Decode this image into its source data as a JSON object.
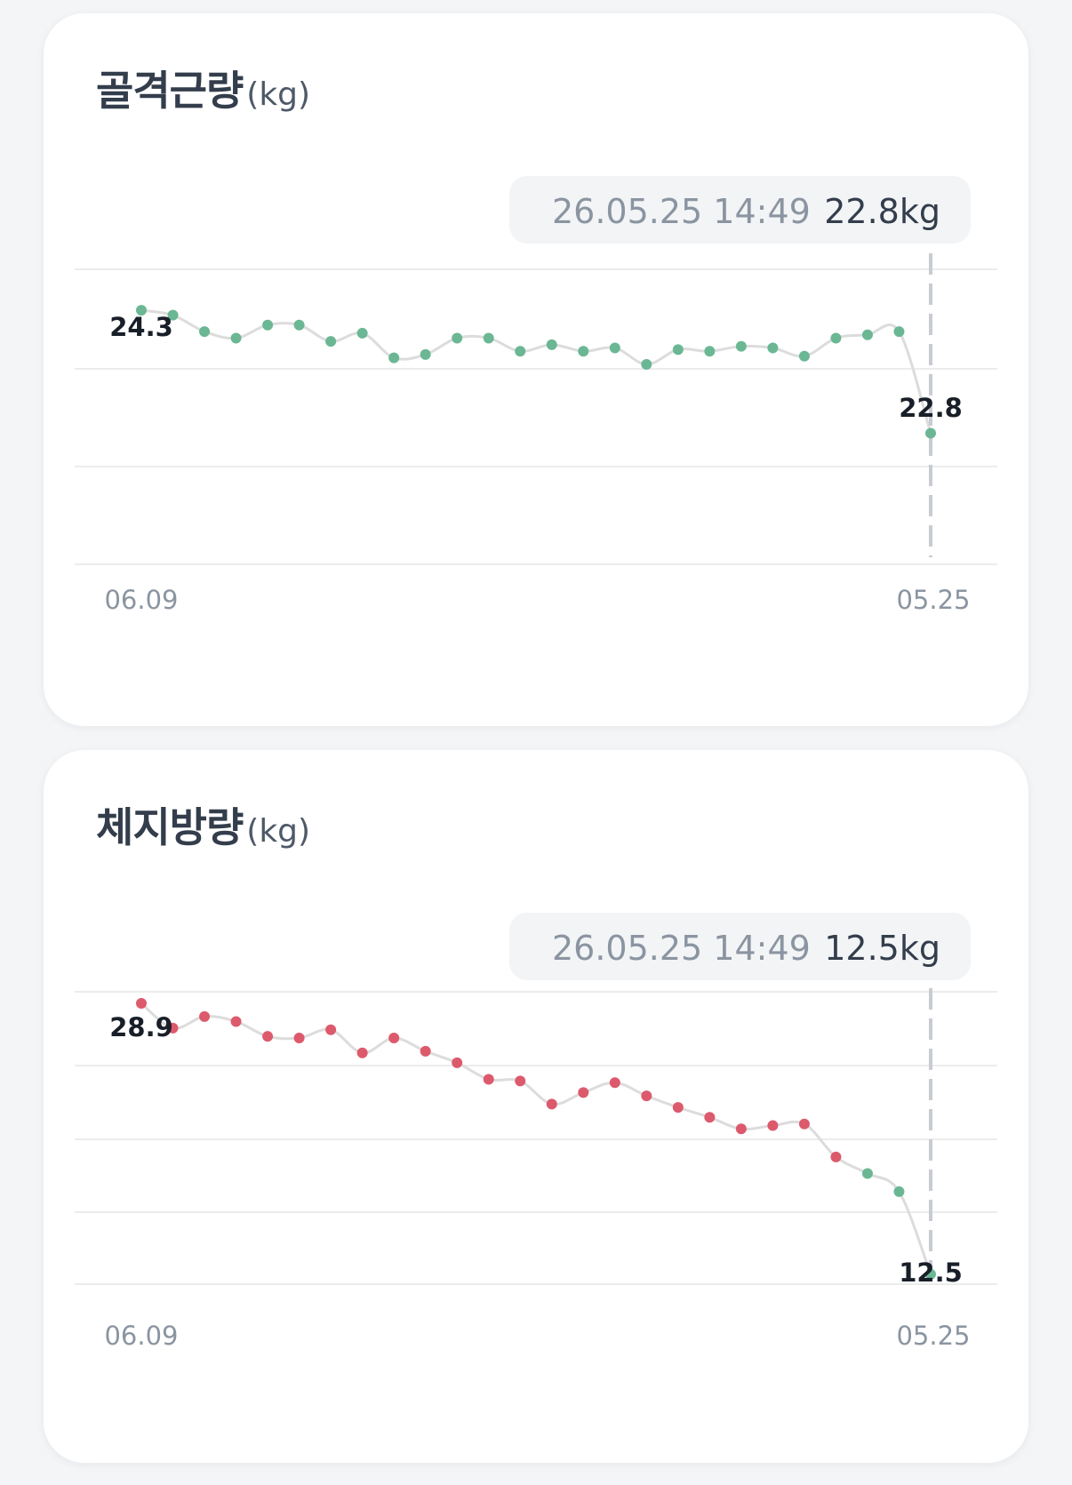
{
  "cards": [
    {
      "title": "골격근량",
      "unit": "(kg)",
      "tooltip": {
        "datetime": "26.05.25 14:49",
        "value_text": "22.8kg"
      },
      "start_label": "24.3",
      "end_label": "22.8"
    },
    {
      "title": "체지방량",
      "unit": "(kg)",
      "tooltip": {
        "datetime": "26.05.25 14:49",
        "value_text": "12.5kg"
      },
      "start_label": "28.9",
      "end_label": "12.5"
    }
  ],
  "colors": {
    "normal_point": "#6bb794",
    "high_point": "#dc5a6c",
    "line": "#dcdcdc",
    "grid": "#ececec",
    "cursor": "#c8ccd2",
    "tooltip_bg": "#f2f4f6"
  },
  "chart_data": [
    {
      "type": "line",
      "title": "골격근량",
      "ylabel": "(kg)",
      "x_tick_labels": [
        "06.09",
        "05.25"
      ],
      "ylim": [
        21.2,
        24.8
      ],
      "grid": true,
      "series": [
        {
          "values": [
            24.3,
            24.24,
            24.04,
            23.96,
            24.12,
            24.12,
            23.92,
            24.02,
            23.72,
            23.76,
            23.96,
            23.96,
            23.8,
            23.88,
            23.8,
            23.84,
            23.64,
            23.82,
            23.8,
            23.86,
            23.84,
            23.74,
            23.96,
            24.0,
            24.04,
            22.8
          ],
          "point_status": [
            "normal",
            "normal",
            "normal",
            "normal",
            "normal",
            "normal",
            "normal",
            "normal",
            "normal",
            "normal",
            "normal",
            "normal",
            "normal",
            "normal",
            "normal",
            "normal",
            "normal",
            "normal",
            "normal",
            "normal",
            "normal",
            "normal",
            "normal",
            "normal",
            "normal",
            "normal"
          ]
        }
      ],
      "selected_index": 25
    },
    {
      "type": "line",
      "title": "체지방량",
      "ylabel": "(kg)",
      "x_tick_labels": [
        "06.09",
        "05.25"
      ],
      "ylim": [
        11.9,
        29.6
      ],
      "grid": true,
      "series": [
        {
          "values": [
            28.9,
            27.4,
            28.1,
            27.8,
            26.9,
            26.8,
            27.3,
            25.9,
            26.8,
            26.0,
            25.3,
            24.3,
            24.2,
            22.8,
            23.5,
            24.1,
            23.3,
            22.6,
            22.0,
            21.3,
            21.5,
            21.6,
            19.6,
            18.6,
            17.5,
            12.5
          ],
          "point_status": [
            "high",
            "high",
            "high",
            "high",
            "high",
            "high",
            "high",
            "high",
            "high",
            "high",
            "high",
            "high",
            "high",
            "high",
            "high",
            "high",
            "high",
            "high",
            "high",
            "high",
            "high",
            "high",
            "high",
            "normal",
            "normal",
            "normal"
          ]
        }
      ],
      "selected_index": 25
    }
  ]
}
